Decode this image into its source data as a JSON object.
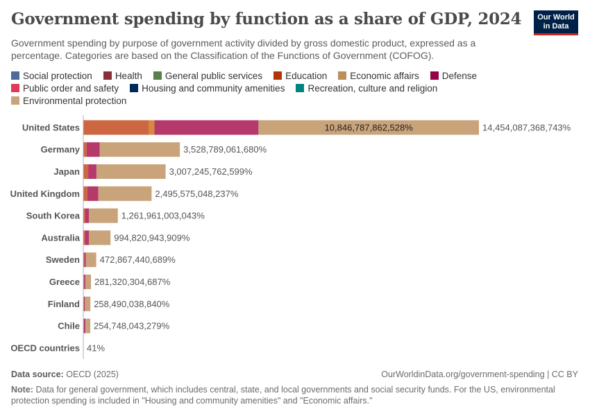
{
  "header": {
    "title": "Government spending by function as a share of GDP, 2024",
    "subtitle": "Government spending by purpose of government activity divided by gross domestic product, expressed as a percentage. Categories are based on the Classification of the Functions of Government (COFOG).",
    "logo_line1": "Our World",
    "logo_line2": "in Data"
  },
  "footer": {
    "source_label": "Data source:",
    "source_value": "OECD (2025)",
    "url": "OurWorldinData.org/government-spending | CC BY",
    "note_label": "Note:",
    "note_text": "Data for general government, which includes central, state, and local governments and social security funds. For the US, environmental protection spending is included in \"Housing and community amenities\" and \"Economic affairs.\""
  },
  "chart_data": {
    "type": "bar",
    "orientation": "horizontal",
    "stacked": true,
    "title": "Government spending by function as a share of GDP, 2024",
    "series_legend": [
      {
        "name": "Social protection",
        "color": "#4c6a9c"
      },
      {
        "name": "Health",
        "color": "#883039"
      },
      {
        "name": "General public services",
        "color": "#578145"
      },
      {
        "name": "Education",
        "color": "#b13507"
      },
      {
        "name": "Economic affairs",
        "color": "#bc8e5a"
      },
      {
        "name": "Defense",
        "color": "#970046"
      },
      {
        "name": "Public order and safety",
        "color": "#e03a5b"
      },
      {
        "name": "Housing and community amenities",
        "color": "#00295b"
      },
      {
        "name": "Recreation, culture and religion",
        "color": "#00847e"
      },
      {
        "name": "Environmental protection",
        "color": "#c8a37b"
      }
    ],
    "segment_colors": {
      "seg_a": "#cd6741",
      "seg_b": "#d68a3e",
      "seg_c": "#b5396b",
      "seg_d": "#c9a47b"
    },
    "categories": [
      "United States",
      "Germany",
      "Japan",
      "United Kingdom",
      "South Korea",
      "Australia",
      "Sweden",
      "Greece",
      "Finland",
      "Chile",
      "OECD countries"
    ],
    "totals": [
      14454087368743,
      3528789061680,
      3007245762599,
      2495575048237,
      1261961003043,
      994820943909,
      472867440689,
      281320304687,
      258490038840,
      254748043279,
      41
    ],
    "total_labels": [
      "14,454,087,368,743%",
      "3,528,789,061,680%",
      "3,007,245,762,599%",
      "2,495,575,048,237%",
      "1,261,961,003,043%",
      "994,820,943,909%",
      "472,867,440,689%",
      "281,320,304,687%",
      "258,490,038,840%",
      "254,748,043,279%",
      "41%"
    ],
    "segments": [
      {
        "seg_a": 2400000000000,
        "seg_b": 200000000000,
        "seg_c": 3800000000000,
        "seg_d": 8054087368743,
        "inner_label": "10,846,787,862,528%"
      },
      {
        "seg_a": 120000000000,
        "seg_b": 0,
        "seg_c": 480000000000,
        "seg_d": 2928789061680
      },
      {
        "seg_a": 180000000000,
        "seg_b": 0,
        "seg_c": 300000000000,
        "seg_d": 2527245762599
      },
      {
        "seg_a": 150000000000,
        "seg_b": 0,
        "seg_c": 400000000000,
        "seg_d": 1945575048237
      },
      {
        "seg_a": 60000000000,
        "seg_b": 0,
        "seg_c": 150000000000,
        "seg_d": 1051961003043
      },
      {
        "seg_a": 60000000000,
        "seg_b": 0,
        "seg_c": 150000000000,
        "seg_d": 784820943909
      },
      {
        "seg_a": 30000000000,
        "seg_b": 0,
        "seg_c": 60000000000,
        "seg_d": 382867440689
      },
      {
        "seg_a": 30000000000,
        "seg_b": 0,
        "seg_c": 50000000000,
        "seg_d": 201320304687
      },
      {
        "seg_a": 20000000000,
        "seg_b": 0,
        "seg_c": 40000000000,
        "seg_d": 198490038840
      },
      {
        "seg_a": 20000000000,
        "seg_b": 0,
        "seg_c": 60000000000,
        "seg_d": 174748043279
      },
      {
        "seg_a": 0,
        "seg_b": 0,
        "seg_c": 0,
        "seg_d": 41
      }
    ],
    "xlim": [
      0,
      14454087368743
    ],
    "grid": false,
    "legend_position": "top"
  }
}
